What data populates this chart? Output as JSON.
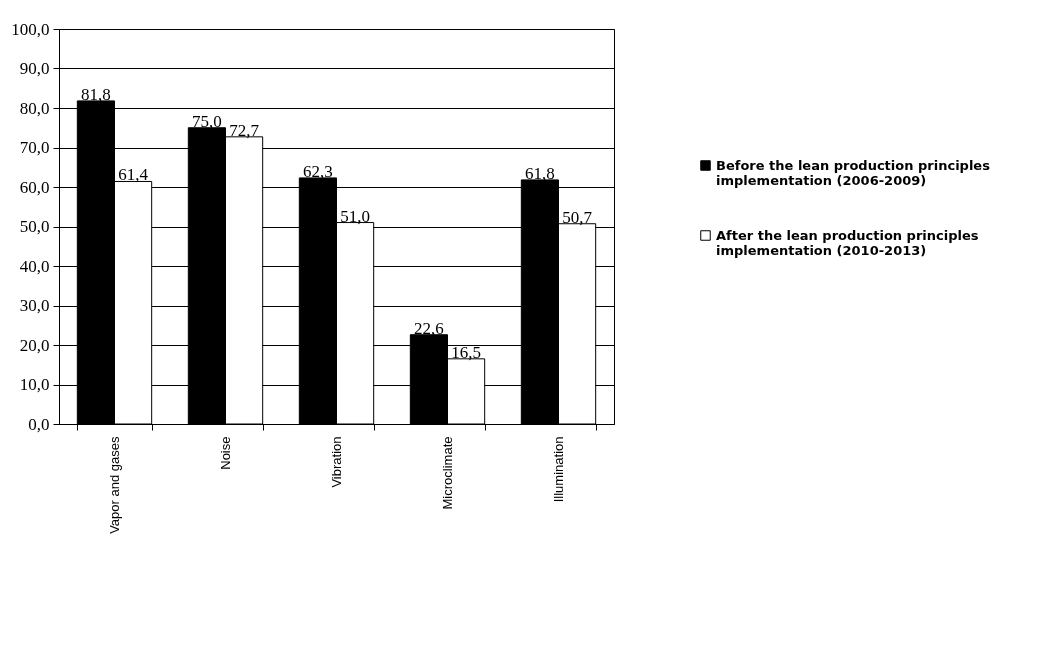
{
  "chart_data": {
    "type": "bar",
    "categories": [
      "Vapor and gases",
      "Noise",
      "Vibration",
      "Microclimate",
      "Illumination"
    ],
    "series": [
      {
        "name": "Before the lean production principles implementation (2006-2009)",
        "color": "#000000",
        "values": [
          81.8,
          75.0,
          62.3,
          22.6,
          61.8
        ],
        "value_labels": [
          "81,8",
          "75,0",
          "62,3",
          "22,6",
          "61,8"
        ]
      },
      {
        "name": "After the lean production principles implementation (2010-2013)",
        "color": "#ffffff",
        "values": [
          61.4,
          72.7,
          51.0,
          16.5,
          50.7
        ],
        "value_labels": [
          "61,4",
          "72,7",
          "51,0",
          "16,5",
          "50,7"
        ]
      }
    ],
    "ylim": [
      0,
      100
    ],
    "yticks": [
      {
        "value": 0,
        "label": "0,0"
      },
      {
        "value": 10,
        "label": "10,0"
      },
      {
        "value": 20,
        "label": "20,0"
      },
      {
        "value": 30,
        "label": "30,0"
      },
      {
        "value": 40,
        "label": "40,0"
      },
      {
        "value": 50,
        "label": "50,0"
      },
      {
        "value": 60,
        "label": "60,0"
      },
      {
        "value": 70,
        "label": "70,0"
      },
      {
        "value": 80,
        "label": "80,0"
      },
      {
        "value": 90,
        "label": "90,0"
      },
      {
        "value": 100,
        "label": "100,0"
      }
    ],
    "grid": "y",
    "legend": "right"
  }
}
